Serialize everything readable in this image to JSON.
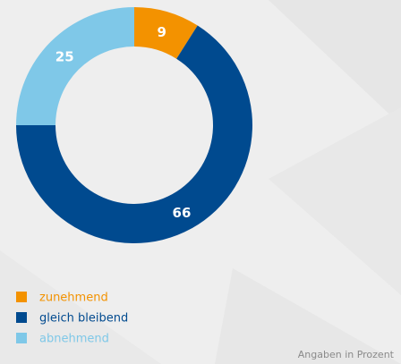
{
  "chart_data": {
    "type": "donut",
    "categories": [
      "zunehmend",
      "gleich bleibend",
      "abnehmend"
    ],
    "values": [
      9,
      66,
      25
    ],
    "colors": [
      "#f39200",
      "#004a8f",
      "#7fc8e8"
    ],
    "note": "Angaben in Prozent"
  }
}
